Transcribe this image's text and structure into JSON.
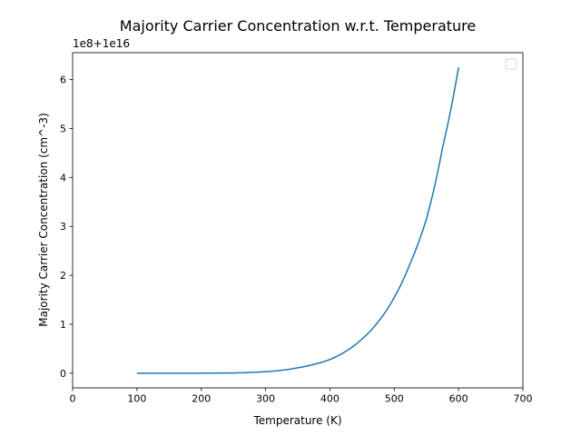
{
  "chart_data": {
    "type": "line",
    "title": "Majority Carrier Concentration w.r.t. Temperature",
    "xlabel": "Temperature (K)",
    "ylabel": "Majority Carrier Concentration (cm^-3)",
    "offset_label": "1e8+1e16",
    "xlim": [
      0,
      700
    ],
    "ylim": [
      -0.3,
      6.55
    ],
    "xticks": [
      0,
      100,
      200,
      300,
      400,
      500,
      600,
      700
    ],
    "xtick_labels": [
      "0",
      "100",
      "200",
      "300",
      "400",
      "500",
      "600",
      "700"
    ],
    "yticks": [
      0,
      1,
      2,
      3,
      4,
      5,
      6
    ],
    "ytick_labels": [
      "0",
      "1",
      "2",
      "3",
      "4",
      "5",
      "6"
    ],
    "grid": false,
    "legend": "top-right",
    "series": [
      {
        "color": "#1f77b4",
        "x": [
          100,
          150,
          200,
          250,
          275,
          300,
          325,
          350,
          375,
          400,
          425,
          450,
          475,
          500,
          525,
          550,
          575,
          600
        ],
        "y": [
          0,
          0,
          0,
          0.005,
          0.015,
          0.03,
          0.06,
          0.11,
          0.18,
          0.28,
          0.45,
          0.7,
          1.05,
          1.55,
          2.25,
          3.15,
          4.6,
          6.25
        ]
      }
    ]
  }
}
